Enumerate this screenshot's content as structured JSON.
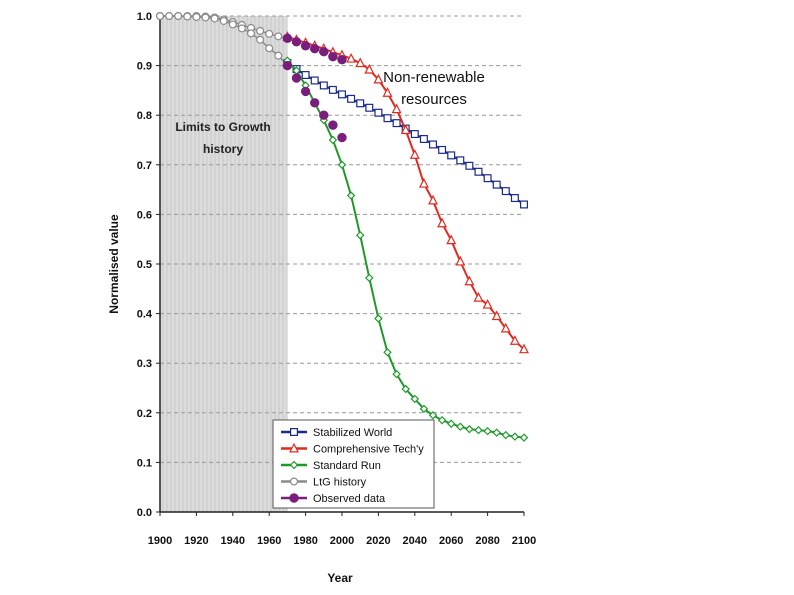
{
  "chart_data": {
    "type": "line",
    "xlabel": "Year",
    "ylabel": "Normalised value",
    "xlim": [
      1900,
      2100
    ],
    "ylim": [
      0,
      1
    ],
    "x_ticks": [
      "1900",
      "1920",
      "1940",
      "1960",
      "1980",
      "2000",
      "2020",
      "2040",
      "2060",
      "2080",
      "2100"
    ],
    "y_ticks": [
      "0.0",
      "0.1",
      "0.2",
      "0.3",
      "0.4",
      "0.5",
      "0.6",
      "0.7",
      "0.8",
      "0.9",
      "1.0"
    ],
    "grid": true,
    "shaded_region": {
      "x_from": 1900,
      "x_to": 1970,
      "label_lines": [
        "Limits to Growth",
        "history"
      ]
    },
    "annotation_lines": [
      "Non-renewable",
      "resources"
    ],
    "legend_position": "bottom-center",
    "series": [
      {
        "name": "Stabilized World",
        "color": "#1a2a8c",
        "marker": "square",
        "x": [
          1970,
          1975,
          1980,
          1985,
          1990,
          1995,
          2000,
          2005,
          2010,
          2015,
          2020,
          2025,
          2030,
          2035,
          2040,
          2045,
          2050,
          2055,
          2060,
          2065,
          2070,
          2075,
          2080,
          2085,
          2090,
          2095,
          2100
        ],
        "y": [
          0.905,
          0.893,
          0.881,
          0.87,
          0.86,
          0.851,
          0.842,
          0.833,
          0.824,
          0.815,
          0.805,
          0.794,
          0.784,
          0.773,
          0.762,
          0.752,
          0.741,
          0.73,
          0.719,
          0.709,
          0.698,
          0.686,
          0.673,
          0.66,
          0.647,
          0.633,
          0.62
        ]
      },
      {
        "name": "Comprehensive Tech'y",
        "color": "#e02a1f",
        "marker": "triangle",
        "x": [
          1970,
          1975,
          1980,
          1985,
          1990,
          1995,
          2000,
          2005,
          2010,
          2015,
          2020,
          2025,
          2030,
          2035,
          2040,
          2045,
          2050,
          2055,
          2060,
          2065,
          2070,
          2075,
          2080,
          2085,
          2090,
          2095,
          2100
        ],
        "y": [
          0.958,
          0.952,
          0.946,
          0.94,
          0.934,
          0.927,
          0.921,
          0.914,
          0.905,
          0.892,
          0.872,
          0.845,
          0.812,
          0.77,
          0.72,
          0.662,
          0.628,
          0.582,
          0.548,
          0.505,
          0.465,
          0.432,
          0.418,
          0.395,
          0.37,
          0.345,
          0.328
        ]
      },
      {
        "name": "Standard Run",
        "color": "#1f9a2a",
        "marker": "diamond",
        "x": [
          1970,
          1975,
          1980,
          1985,
          1990,
          1995,
          2000,
          2005,
          2010,
          2015,
          2020,
          2025,
          2030,
          2035,
          2040,
          2045,
          2050,
          2055,
          2060,
          2065,
          2070,
          2075,
          2080,
          2085,
          2090,
          2095,
          2100
        ],
        "y": [
          0.91,
          0.89,
          0.86,
          0.825,
          0.79,
          0.75,
          0.7,
          0.638,
          0.558,
          0.472,
          0.39,
          0.322,
          0.278,
          0.248,
          0.228,
          0.208,
          0.195,
          0.185,
          0.178,
          0.172,
          0.167,
          0.165,
          0.163,
          0.16,
          0.155,
          0.152,
          0.15
        ]
      },
      {
        "name": "LtG history",
        "color": "#8a8a8a",
        "marker": "circle",
        "x": [
          1900,
          1905,
          1910,
          1915,
          1920,
          1925,
          1930,
          1935,
          1940,
          1945,
          1950,
          1955,
          1960,
          1965,
          1970
        ],
        "y": [
          1.0,
          1.0,
          1.0,
          0.999,
          0.998,
          0.997,
          0.995,
          0.99,
          0.983,
          0.975,
          0.965,
          0.952,
          0.935,
          0.92,
          0.9
        ]
      },
      {
        "name": "Observed data",
        "color": "#7a1e7e",
        "marker": "filled-circle",
        "x": [
          1970,
          1975,
          1980,
          1985,
          1990,
          1995,
          2000
        ],
        "y": [
          0.9,
          0.875,
          0.848,
          0.825,
          0.8,
          0.78,
          0.755
        ]
      }
    ],
    "ltg_history_secondary": {
      "color": "#8a8a8a",
      "x": [
        1900,
        1905,
        1910,
        1915,
        1920,
        1925,
        1930,
        1935,
        1940,
        1945,
        1950,
        1955,
        1960,
        1965,
        1970
      ],
      "y": [
        1.0,
        1.0,
        1.0,
        1.0,
        1.0,
        0.999,
        0.997,
        0.993,
        0.988,
        0.982,
        0.976,
        0.97,
        0.964,
        0.959,
        0.955
      ]
    },
    "observed_secondary": {
      "color": "#7a1e7e",
      "x": [
        1970,
        1975,
        1980,
        1985,
        1990,
        1995,
        2000
      ],
      "y": [
        0.955,
        0.948,
        0.94,
        0.934,
        0.928,
        0.918,
        0.912
      ]
    }
  }
}
